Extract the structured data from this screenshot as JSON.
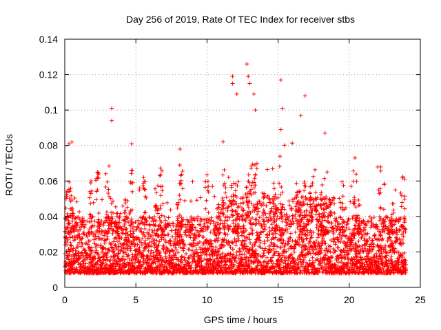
{
  "chart_data": {
    "type": "scatter",
    "title": "Day 256 of 2019, Rate Of TEC Index for receiver stbs",
    "xlabel": "GPS time / hours",
    "ylabel": "ROTI / TECUs",
    "xlim": [
      0,
      25
    ],
    "ylim": [
      0,
      0.14
    ],
    "xticks": [
      "0",
      "5",
      "10",
      "15",
      "20",
      "25"
    ],
    "yticks": [
      "0",
      "0.02",
      "0.04",
      "0.06",
      "0.08",
      "0.1",
      "0.12",
      "0.14"
    ],
    "grid": true,
    "marker": "plus",
    "marker_color": "#ff0000",
    "series": [
      {
        "name": "ROTI",
        "notable_peaks": [
          {
            "x": 0.3,
            "y": 0.081
          },
          {
            "x": 0.5,
            "y": 0.082
          },
          {
            "x": 3.3,
            "y": 0.101
          },
          {
            "x": 3.3,
            "y": 0.094
          },
          {
            "x": 4.7,
            "y": 0.081
          },
          {
            "x": 8.1,
            "y": 0.078
          },
          {
            "x": 11.8,
            "y": 0.119
          },
          {
            "x": 11.8,
            "y": 0.115
          },
          {
            "x": 12.1,
            "y": 0.109
          },
          {
            "x": 12.8,
            "y": 0.126
          },
          {
            "x": 12.9,
            "y": 0.119
          },
          {
            "x": 13.0,
            "y": 0.115
          },
          {
            "x": 13.3,
            "y": 0.109
          },
          {
            "x": 13.4,
            "y": 0.1
          },
          {
            "x": 15.2,
            "y": 0.117
          },
          {
            "x": 15.3,
            "y": 0.101
          },
          {
            "x": 15.2,
            "y": 0.089
          },
          {
            "x": 16.9,
            "y": 0.108
          },
          {
            "x": 16.6,
            "y": 0.097
          },
          {
            "x": 18.3,
            "y": 0.087
          },
          {
            "x": 20.4,
            "y": 0.073
          }
        ]
      }
    ]
  }
}
